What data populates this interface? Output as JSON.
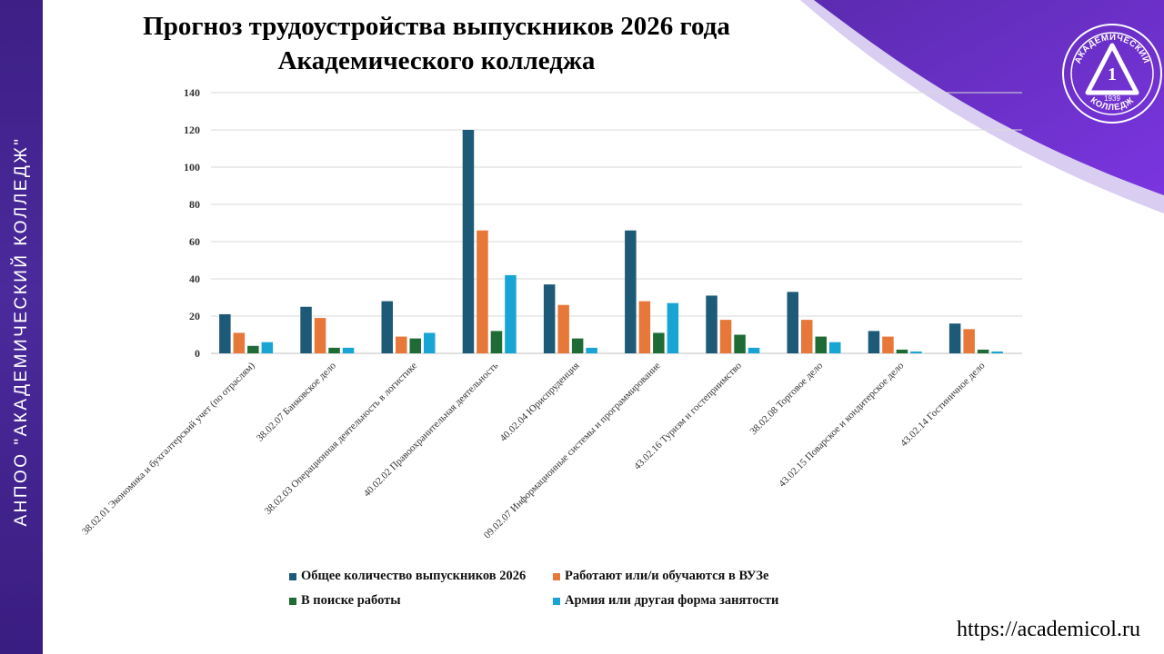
{
  "sidebar": {
    "label": "АНПОО \"АКАДЕМИЧЕСКИЙ КОЛЛЕДЖ\""
  },
  "logo": {
    "top_text": "АКАДЕМИЧЕСКИЙ",
    "number": "1",
    "year": "1939",
    "bottom_text": "КОЛЛЕДЖ"
  },
  "footer": {
    "url": "https://academicol.ru"
  },
  "colors": {
    "series1": "#1d5a78",
    "series2": "#e8773a",
    "series3": "#1e6b36",
    "series4": "#19a5d3",
    "sidebar": "#3d1f86"
  },
  "chart_data": {
    "type": "bar",
    "title_lines": [
      "Прогноз трудоустройства  выпускников  2026 года",
      "Академического колледжа"
    ],
    "ylim": [
      0,
      140
    ],
    "yticks": [
      0,
      20,
      40,
      60,
      80,
      100,
      120,
      140
    ],
    "grid": true,
    "legend_position": "bottom",
    "categories": [
      "38.02.01 Экономика и бухгалтерский учет (по отраслям)",
      "38.02.07 Банковское дело",
      "38.02.03 Операционная деятельность в логистике",
      "40.02.02 Правоохранительная деятельность",
      "40.02.04 Юриспруденция",
      "09.02.07 Информационные системы и программирование",
      "43.02.16 Туризм и гостеприимство",
      "38.02.08 Торговое дело",
      "43.02.15 Поварское и кондитерское дело",
      "43.02.14 Гостиничное  дело"
    ],
    "series": [
      {
        "name": "Общее количество выпускников 2026",
        "values": [
          21,
          25,
          28,
          120,
          37,
          66,
          31,
          33,
          12,
          16
        ]
      },
      {
        "name": "Работают или/и обучаются в ВУЗе",
        "values": [
          11,
          19,
          9,
          66,
          26,
          28,
          18,
          18,
          9,
          13
        ]
      },
      {
        "name": "В поиске работы",
        "values": [
          4,
          3,
          8,
          12,
          8,
          11,
          10,
          9,
          2,
          2
        ]
      },
      {
        "name": "Армия или другая форма занятости",
        "values": [
          6,
          3,
          11,
          42,
          3,
          27,
          3,
          6,
          1,
          1
        ]
      }
    ]
  }
}
